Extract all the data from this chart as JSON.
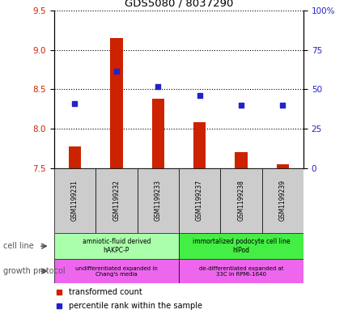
{
  "title": "GDS5080 / 8037290",
  "samples": [
    "GSM1199231",
    "GSM1199232",
    "GSM1199233",
    "GSM1199237",
    "GSM1199238",
    "GSM1199239"
  ],
  "bar_values": [
    7.77,
    9.15,
    8.38,
    8.08,
    7.7,
    7.55
  ],
  "dot_values": [
    8.32,
    8.73,
    8.53,
    8.42,
    8.3,
    8.3
  ],
  "bar_bottom": 7.5,
  "ylim_left": [
    7.5,
    9.5
  ],
  "ylim_right": [
    0,
    100
  ],
  "yticks_left": [
    7.5,
    8.0,
    8.5,
    9.0,
    9.5
  ],
  "yticks_right": [
    0,
    25,
    50,
    75,
    100
  ],
  "yticklabels_right": [
    "0",
    "25",
    "50",
    "75",
    "100%"
  ],
  "bar_color": "#cc2200",
  "dot_color": "#2222cc",
  "cell_line_groups": [
    {
      "label": "amniotic-fluid derived\nhAKPC-P",
      "start": 0,
      "end": 3,
      "color": "#aaffaa"
    },
    {
      "label": "immortalized podocyte cell line\nhIPod",
      "start": 3,
      "end": 6,
      "color": "#44ee44"
    }
  ],
  "growth_protocol_groups": [
    {
      "label": "undifferentiated expanded in\nChang's media",
      "start": 0,
      "end": 3,
      "color": "#ee66ee"
    },
    {
      "label": "de-differentiated expanded at\n33C in RPMI-1640",
      "start": 3,
      "end": 6,
      "color": "#ee66ee"
    }
  ],
  "legend_bar_label": "transformed count",
  "legend_dot_label": "percentile rank within the sample",
  "cell_line_label": "cell line",
  "growth_protocol_label": "growth protocol",
  "tick_label_color_left": "#cc2200",
  "tick_label_color_right": "#2222cc",
  "sample_box_color": "#cccccc",
  "left_label_color": "#555555"
}
